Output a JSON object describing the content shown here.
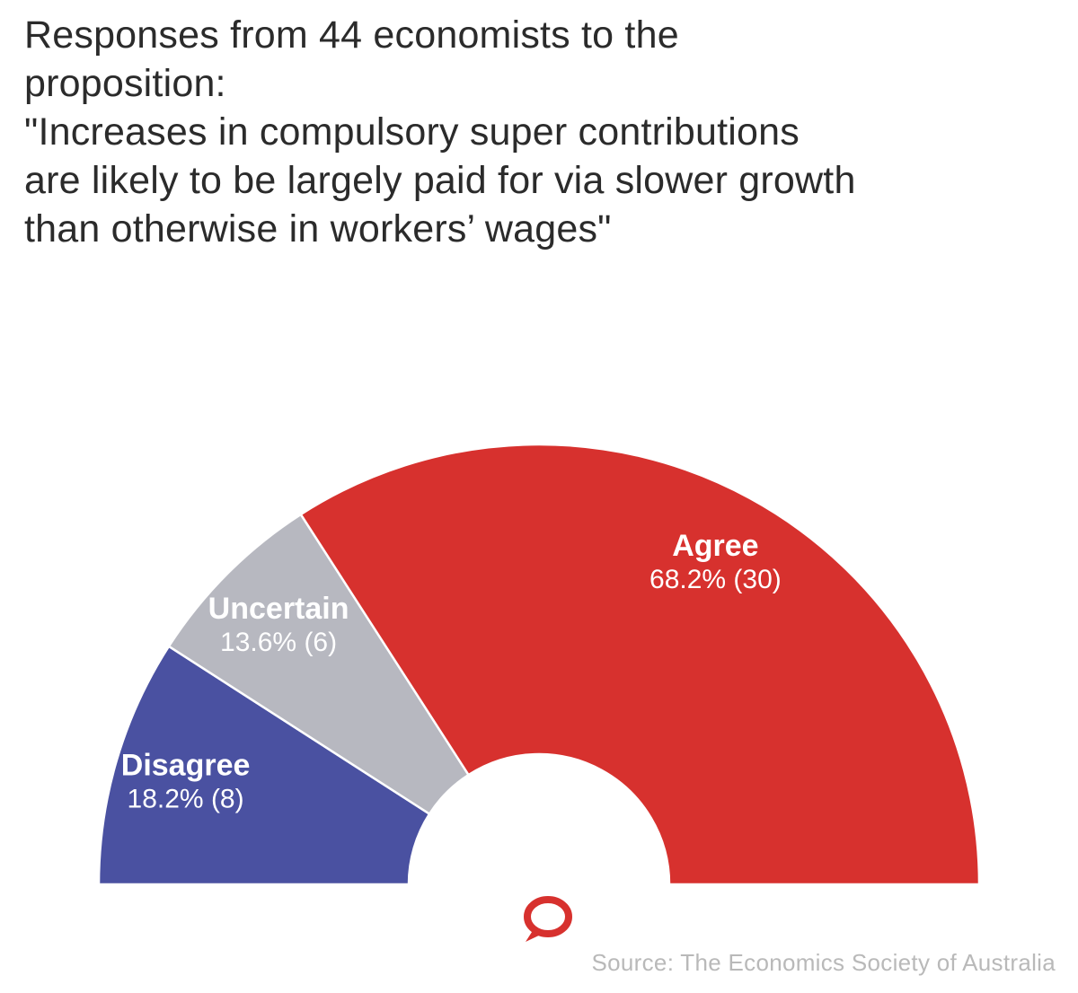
{
  "title": "Responses from 44 economists to the\nproposition:\n\"Increases in compulsory super contributions\nare likely to be largely paid for via slower growth\nthan otherwise in workers’ wages\"",
  "footer": {
    "source": "Source: The Economics Society of Australia",
    "logo_icon": "speech-bubble-logo"
  },
  "chart_data": {
    "type": "pie",
    "variant": "half-donut",
    "title": "Responses from 44 economists to the proposition: \"Increases in compulsory super contributions are likely to be largely paid for via slower growth than otherwise in workers’ wages\"",
    "total_respondents": 44,
    "segments": [
      {
        "label": "Disagree",
        "percent": 18.2,
        "count": 8,
        "color": "#4a51a1"
      },
      {
        "label": "Uncertain",
        "percent": 13.6,
        "count": 6,
        "color": "#b7b8c0"
      },
      {
        "label": "Agree",
        "percent": 68.2,
        "count": 30,
        "color": "#d7312e"
      }
    ],
    "label_format": "{percent}% ({count})",
    "legend": "none",
    "source": "Source: The Economics Society of Australia",
    "logo_color": "#d7312e"
  }
}
